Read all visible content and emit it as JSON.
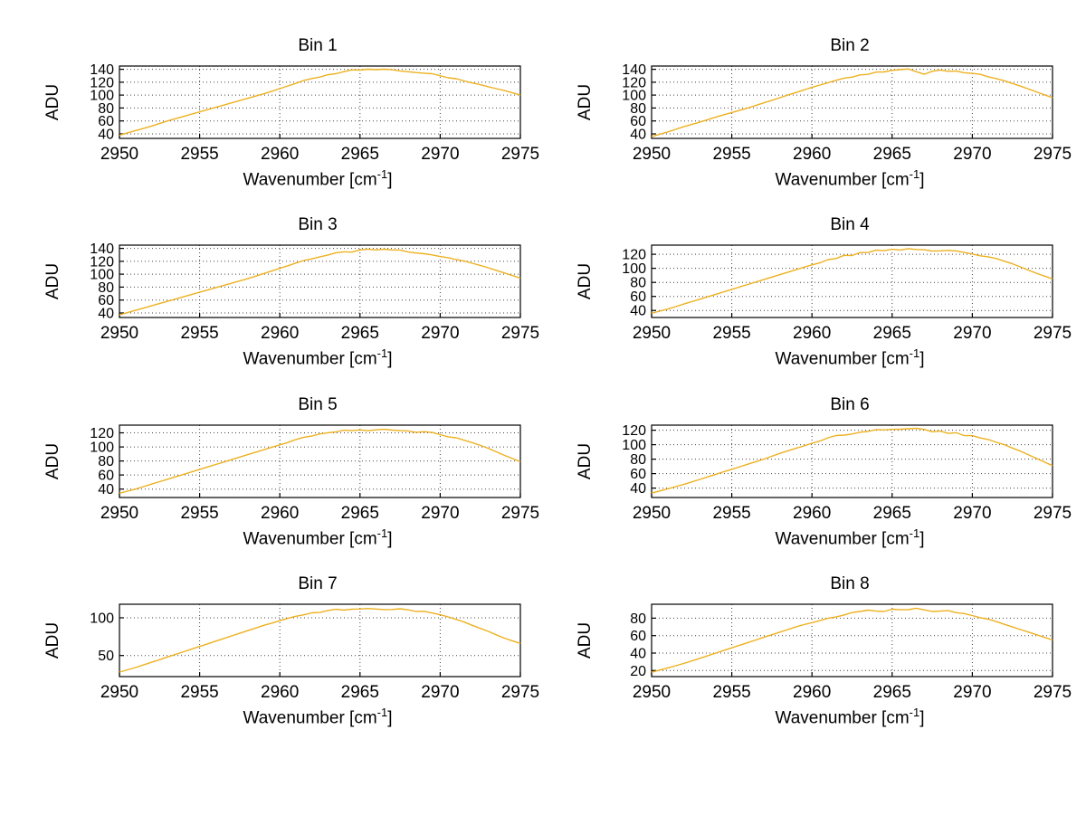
{
  "style": {
    "background": "#ffffff",
    "line_color": "#EDB120",
    "grid_color": "#444444",
    "axis_color": "#000000",
    "text_color": "#000000"
  },
  "chart_data": {
    "type": "line",
    "layout": "4-rows-2-cols",
    "xlabel_parts": {
      "pre": "Wavenumber [cm",
      "sup": "-1",
      "post": "]"
    },
    "xlim": [
      2950,
      2975
    ],
    "xticks": [
      2950,
      2955,
      2960,
      2965,
      2970,
      2975
    ],
    "x": [
      2950,
      2951,
      2952,
      2953,
      2954,
      2955,
      2956,
      2957,
      2958,
      2959,
      2960,
      2961,
      2962,
      2963,
      2964,
      2965,
      2966,
      2967,
      2968,
      2969,
      2970,
      2971,
      2972,
      2973,
      2974,
      2975
    ],
    "charts": [
      {
        "title": "Bin 1",
        "ylabel": "ADU",
        "ylim": [
          33,
          145
        ],
        "yticks": [
          40,
          60,
          80,
          100,
          120,
          140
        ],
        "values": [
          38,
          45,
          52,
          60,
          67,
          74,
          81,
          88,
          95,
          102,
          110,
          118,
          126,
          132,
          136,
          139,
          140,
          139,
          137,
          134,
          130,
          125,
          119,
          113,
          107,
          100
        ],
        "noise": 2
      },
      {
        "title": "Bin 2",
        "ylabel": "ADU",
        "ylim": [
          33,
          145
        ],
        "yticks": [
          40,
          60,
          80,
          100,
          120,
          140
        ],
        "values": [
          36,
          43,
          51,
          58,
          66,
          73,
          80,
          88,
          96,
          104,
          112,
          119,
          126,
          131,
          135,
          138,
          140,
          133,
          139,
          137,
          134,
          129,
          122,
          114,
          105,
          96
        ],
        "noise": 2
      },
      {
        "title": "Bin 3",
        "ylabel": "ADU",
        "ylim": [
          33,
          145
        ],
        "yticks": [
          40,
          60,
          80,
          100,
          120,
          140
        ],
        "values": [
          37,
          44,
          51,
          58,
          65,
          72,
          79,
          86,
          93,
          101,
          109,
          117,
          124,
          130,
          134,
          137,
          138,
          137,
          135,
          132,
          128,
          123,
          117,
          110,
          102,
          94
        ],
        "noise": 2
      },
      {
        "title": "Bin 4",
        "ylabel": "ADU",
        "ylim": [
          30,
          133
        ],
        "yticks": [
          40,
          60,
          80,
          100,
          120
        ],
        "values": [
          36,
          42,
          49,
          56,
          63,
          70,
          77,
          84,
          91,
          98,
          105,
          112,
          118,
          122,
          125,
          127,
          128,
          127,
          126,
          124,
          121,
          117,
          110,
          102,
          93,
          85
        ],
        "noise": 2.5
      },
      {
        "title": "Bin 5",
        "ylabel": "ADU",
        "ylim": [
          28,
          131
        ],
        "yticks": [
          40,
          60,
          80,
          100,
          120
        ],
        "values": [
          34,
          40,
          47,
          54,
          61,
          68,
          75,
          82,
          89,
          96,
          103,
          110,
          116,
          120,
          123,
          125,
          125,
          124,
          123,
          121,
          118,
          113,
          106,
          98,
          88,
          79
        ],
        "noise": 2.5
      },
      {
        "title": "Bin 6",
        "ylabel": "ADU",
        "ylim": [
          27,
          127
        ],
        "yticks": [
          40,
          60,
          80,
          100,
          120
        ],
        "values": [
          33,
          39,
          45,
          52,
          59,
          66,
          73,
          80,
          88,
          95,
          102,
          109,
          114,
          118,
          120,
          121,
          121,
          120,
          118,
          116,
          112,
          107,
          100,
          91,
          81,
          71
        ],
        "noise": 2.5
      },
      {
        "title": "Bin 7",
        "ylabel": "ADU",
        "ylim": [
          22,
          118
        ],
        "yticks": [
          50,
          100
        ],
        "values": [
          28,
          34,
          41,
          48,
          55,
          62,
          69,
          76,
          83,
          90,
          96,
          102,
          106,
          109,
          111,
          112,
          112,
          111,
          110,
          108,
          104,
          98,
          90,
          82,
          73,
          66
        ],
        "noise": 2
      },
      {
        "title": "Bin 8",
        "ylabel": "ADU",
        "ylim": [
          13,
          96
        ],
        "yticks": [
          20,
          40,
          60,
          80
        ],
        "values": [
          18,
          23,
          28,
          34,
          40,
          46,
          52,
          58,
          64,
          70,
          75,
          80,
          84,
          87,
          89,
          90,
          90,
          89,
          88,
          86,
          83,
          79,
          73,
          67,
          61,
          55
        ],
        "noise": 2
      }
    ]
  }
}
